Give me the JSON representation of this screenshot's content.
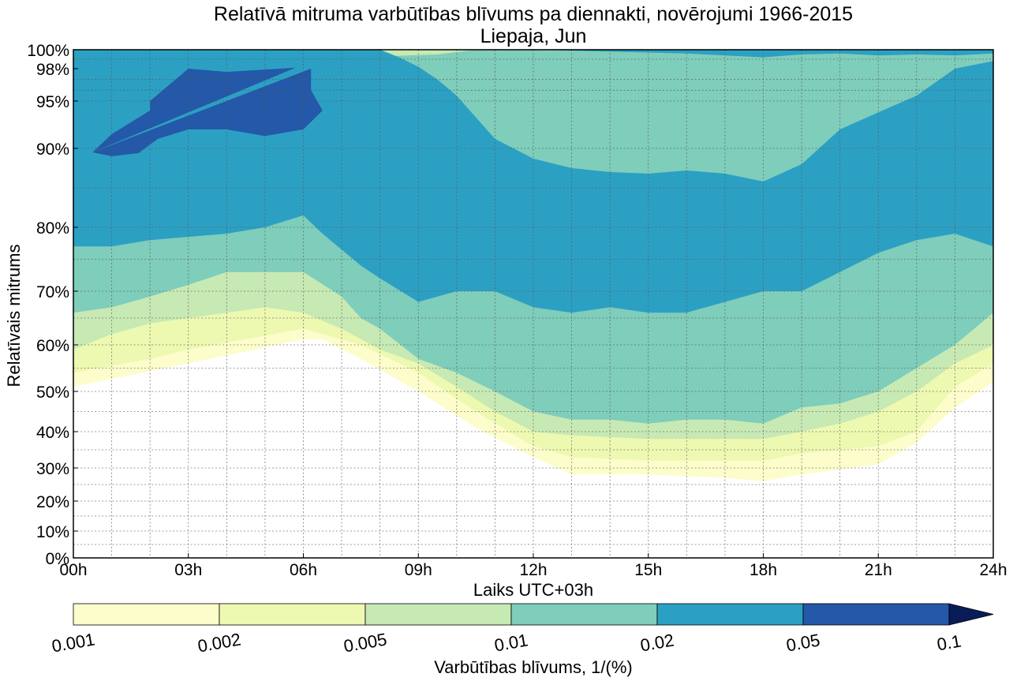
{
  "chart_data": {
    "type": "heatmap",
    "title": "Relatīvā mitruma varbūtības blīvums pa diennakti, novērojumi 1966-2015",
    "subtitle": "Liepaja, Jun",
    "xlabel": "Laiks UTC+03h",
    "ylabel": "Relatīvais mitrums",
    "x_ticks": [
      "00h",
      "03h",
      "06h",
      "09h",
      "12h",
      "15h",
      "18h",
      "21h",
      "24h"
    ],
    "x_tick_values": [
      0,
      3,
      6,
      9,
      12,
      15,
      18,
      21,
      24
    ],
    "xlim": [
      0,
      24
    ],
    "y_ticks": [
      "0%",
      "10%",
      "20%",
      "30%",
      "40%",
      "50%",
      "60%",
      "70%",
      "80%",
      "90%",
      "95%",
      "98%",
      "100%"
    ],
    "y_tick_values": [
      0,
      10,
      20,
      30,
      40,
      50,
      60,
      70,
      80,
      90,
      95,
      98,
      100
    ],
    "ylim": [
      0,
      100
    ],
    "grid": true,
    "colorbar": {
      "label": "Varbūtības blīvums, 1/(%)",
      "levels": [
        0.001,
        0.002,
        0.005,
        0.01,
        0.02,
        0.05,
        0.1
      ],
      "tick_labels": [
        "0.001",
        "0.002",
        "0.005",
        "0.01",
        "0.02",
        "0.05",
        "0.1"
      ],
      "colors": [
        "#fcfdcb",
        "#edf8b1",
        "#c7e9b4",
        "#7fcdbb",
        "#2ca0c3",
        "#2458a8",
        "#081d58"
      ],
      "extend": "max"
    },
    "contour_bands": [
      {
        "level": 0.001,
        "color": "#fcfdcb",
        "lower": [
          [
            0,
            51
          ],
          [
            3,
            56
          ],
          [
            6,
            61
          ],
          [
            6.5,
            61
          ],
          [
            7.5,
            57
          ],
          [
            9,
            50
          ],
          [
            10.5,
            41
          ],
          [
            12,
            33
          ],
          [
            13,
            28
          ],
          [
            15,
            28
          ],
          [
            17,
            27
          ],
          [
            18,
            26
          ],
          [
            19,
            28
          ],
          [
            21,
            31
          ],
          [
            22,
            37
          ],
          [
            23,
            46
          ],
          [
            24,
            52
          ]
        ],
        "upper": [
          [
            0,
            100
          ],
          [
            24,
            100
          ]
        ]
      },
      {
        "level": 0.002,
        "color": "#edf8b1",
        "lower": [
          [
            0,
            54
          ],
          [
            2,
            57
          ],
          [
            3,
            59
          ],
          [
            6,
            63
          ],
          [
            7.5,
            60
          ],
          [
            9,
            54
          ],
          [
            10.5,
            45
          ],
          [
            12,
            36
          ],
          [
            13,
            33
          ],
          [
            15,
            32
          ],
          [
            18,
            32
          ],
          [
            19,
            34
          ],
          [
            21,
            36
          ],
          [
            22,
            40
          ],
          [
            23,
            51
          ],
          [
            24,
            56
          ]
        ],
        "upper": [
          [
            0,
            100
          ],
          [
            24,
            100
          ]
        ]
      },
      {
        "level": 0.005,
        "color": "#c7e9b4",
        "lower": [
          [
            0,
            59
          ],
          [
            1,
            62
          ],
          [
            2,
            64
          ],
          [
            3,
            65
          ],
          [
            4,
            66
          ],
          [
            5,
            67
          ],
          [
            6,
            66
          ],
          [
            7,
            63
          ],
          [
            8,
            59
          ],
          [
            9,
            56
          ],
          [
            10,
            51
          ],
          [
            11,
            45
          ],
          [
            12,
            40
          ],
          [
            13,
            39
          ],
          [
            15,
            38
          ],
          [
            18,
            38
          ],
          [
            19,
            40
          ],
          [
            20,
            42
          ],
          [
            21,
            45
          ],
          [
            22,
            50
          ],
          [
            23,
            56
          ],
          [
            24,
            60
          ]
        ],
        "upper": [
          [
            0,
            100
          ],
          [
            24,
            100
          ]
        ]
      },
      {
        "level": 0.01,
        "color": "#7fcdbb",
        "lower": [
          [
            0,
            66
          ],
          [
            1,
            67
          ],
          [
            2,
            69
          ],
          [
            3,
            71
          ],
          [
            4,
            73
          ],
          [
            5,
            73
          ],
          [
            6,
            73
          ],
          [
            7,
            69
          ],
          [
            7.5,
            65
          ],
          [
            8,
            63
          ],
          [
            9,
            57
          ],
          [
            10,
            54
          ],
          [
            11,
            50
          ],
          [
            12,
            45
          ],
          [
            13,
            43
          ],
          [
            14,
            43
          ],
          [
            15,
            42
          ],
          [
            16,
            43
          ],
          [
            17,
            43
          ],
          [
            18,
            42
          ],
          [
            19,
            46
          ],
          [
            20,
            47
          ],
          [
            21,
            50
          ],
          [
            22,
            55
          ],
          [
            23,
            60
          ],
          [
            24,
            66
          ]
        ],
        "upper": [
          [
            0,
            99.4
          ],
          [
            0.5,
            99.4
          ],
          [
            1,
            98.6
          ],
          [
            1.5,
            98.2
          ],
          [
            2,
            98.2
          ],
          [
            4,
            98.5
          ],
          [
            8,
            99.3
          ],
          [
            9.5,
            99.5
          ],
          [
            10.5,
            100
          ],
          [
            24,
            100
          ]
        ]
      },
      {
        "level": 0.02,
        "color": "#2ca0c3",
        "lower": [
          [
            0,
            77
          ],
          [
            1,
            77
          ],
          [
            2,
            78
          ],
          [
            3,
            78.5
          ],
          [
            4,
            79
          ],
          [
            5,
            80
          ],
          [
            6,
            81.5
          ],
          [
            6.5,
            79
          ],
          [
            7.5,
            74
          ],
          [
            8,
            72
          ],
          [
            9,
            68
          ],
          [
            10,
            70
          ],
          [
            11,
            70
          ],
          [
            12,
            67
          ],
          [
            13,
            66
          ],
          [
            14,
            67
          ],
          [
            15,
            66
          ],
          [
            16,
            66
          ],
          [
            17,
            68
          ],
          [
            18,
            70
          ],
          [
            19,
            70
          ],
          [
            20,
            73
          ],
          [
            21,
            76
          ],
          [
            22,
            78
          ],
          [
            23,
            79
          ],
          [
            24,
            77
          ]
        ],
        "upper": [
          [
            0,
            100
          ],
          [
            8,
            100
          ],
          [
            8.5,
            99.2
          ],
          [
            9,
            98.2
          ],
          [
            9.5,
            97
          ],
          [
            10,
            95.5
          ],
          [
            11,
            91
          ],
          [
            12,
            88.7
          ],
          [
            13,
            87.5
          ],
          [
            14,
            87
          ],
          [
            15,
            86.8
          ],
          [
            16,
            87.2
          ],
          [
            17,
            86.8
          ],
          [
            18,
            85.8
          ],
          [
            19,
            88
          ],
          [
            20,
            92
          ],
          [
            21,
            93.8
          ],
          [
            22,
            95.5
          ],
          [
            23,
            98
          ],
          [
            24,
            98.8
          ],
          [
            24,
            99.6
          ],
          [
            23,
            99.4
          ],
          [
            22,
            99.5
          ],
          [
            21,
            99.4
          ],
          [
            20,
            99.6
          ],
          [
            19,
            99.5
          ],
          [
            18,
            99.2
          ],
          [
            17,
            99.4
          ],
          [
            16,
            99.6
          ],
          [
            12,
            100
          ],
          [
            24,
            100
          ],
          [
            24,
            100
          ]
        ]
      },
      {
        "level": 0.05,
        "color": "#2458a8",
        "lower": [
          [
            0.5,
            89.5
          ],
          [
            1,
            89
          ],
          [
            1.7,
            89.4
          ],
          [
            2.2,
            91
          ],
          [
            3,
            92
          ],
          [
            4,
            92
          ],
          [
            5,
            91.3
          ],
          [
            6,
            92
          ],
          [
            6.5,
            94
          ],
          [
            6.2,
            96
          ],
          [
            6.2,
            98
          ]
        ],
        "upper": [
          [
            5.8,
            98.1
          ],
          [
            4,
            97.7
          ],
          [
            3,
            98
          ],
          [
            2,
            95
          ],
          [
            2,
            94
          ],
          [
            1,
            91.5
          ],
          [
            0.5,
            89.5
          ]
        ]
      }
    ]
  }
}
